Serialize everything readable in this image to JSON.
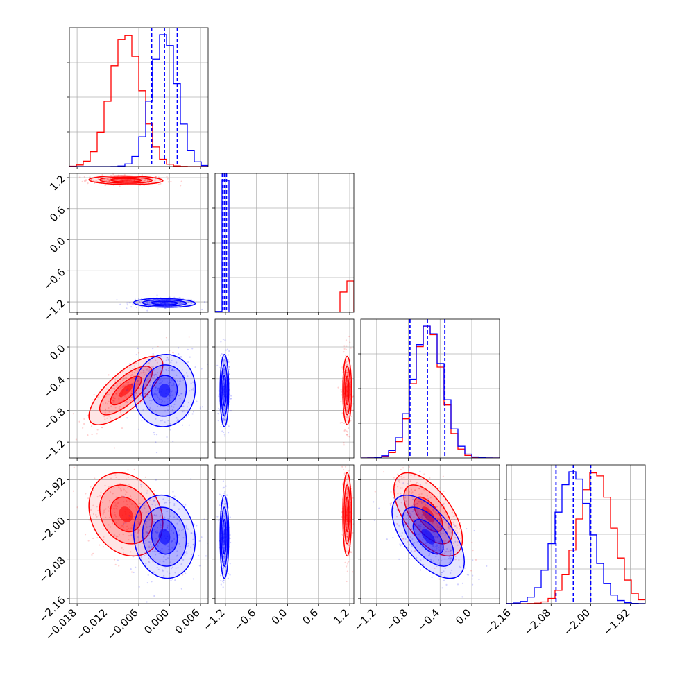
{
  "colors": {
    "series_a": "#ff0000",
    "series_b": "#0000ff",
    "grid": "#b0b0b0",
    "frame": "#000000"
  },
  "chart_data": {
    "type": "corner",
    "grid": true,
    "n_params": 4,
    "params": [
      {
        "ticks": [
          -0.018,
          -0.012,
          -0.006,
          0.0,
          0.006
        ],
        "tick_labels": [
          "−0.018",
          "−0.012",
          "−0.006",
          "0.000",
          "0.006"
        ],
        "range": [
          -0.0195,
          0.0075
        ]
      },
      {
        "ticks": [
          -1.2,
          -0.6,
          0.0,
          0.6,
          1.2
        ],
        "tick_labels": [
          "−1.2",
          "−0.6",
          "0.0",
          "0.6",
          "1.2"
        ],
        "range": [
          -1.4,
          1.28
        ]
      },
      {
        "ticks": [
          -1.2,
          -0.8,
          -0.4,
          0.0
        ],
        "tick_labels": [
          "−1.2",
          "−0.8",
          "−0.4",
          "0.0"
        ],
        "range": [
          -1.4,
          0.35
        ]
      },
      {
        "ticks": [
          -2.16,
          -2.08,
          -2.0,
          -1.92
        ],
        "tick_labels": [
          "−2.16",
          "−2.08",
          "−2.00",
          "−1.92"
        ],
        "range": [
          -2.17,
          -1.89
        ]
      }
    ],
    "series": [
      {
        "color": "red",
        "means": [
          -0.0085,
          1.15,
          -0.55,
          -1.99
        ],
        "sds": [
          0.003,
          0.035,
          0.18,
          0.035
        ],
        "quantiles": []
      },
      {
        "color": "blue",
        "means": [
          -0.001,
          -1.22,
          -0.55,
          -2.035
        ],
        "sds": [
          0.0025,
          0.035,
          0.19,
          0.035
        ],
        "quantiles": [
          [
            -0.0035,
            -0.001,
            0.0015
          ],
          [
            -1.26,
            -1.22,
            -1.18
          ],
          [
            -0.78,
            -0.56,
            -0.34
          ],
          [
            -2.07,
            -2.035,
            -2.0
          ]
        ]
      }
    ],
    "correlations": [
      {
        "pair": [
          2,
          0
        ],
        "red": 0.75,
        "blue": 0.05
      },
      {
        "pair": [
          3,
          0
        ],
        "red": -0.2,
        "blue": -0.1
      },
      {
        "pair": [
          3,
          2
        ],
        "red": -0.6,
        "blue": -0.6
      },
      {
        "pair": [
          1,
          0
        ],
        "red": -0.1,
        "blue": -0.1
      },
      {
        "pair": [
          2,
          1
        ],
        "red": 0.0,
        "blue": 0.0
      },
      {
        "pair": [
          3,
          1
        ],
        "red": 0.0,
        "blue": 0.0
      }
    ]
  }
}
